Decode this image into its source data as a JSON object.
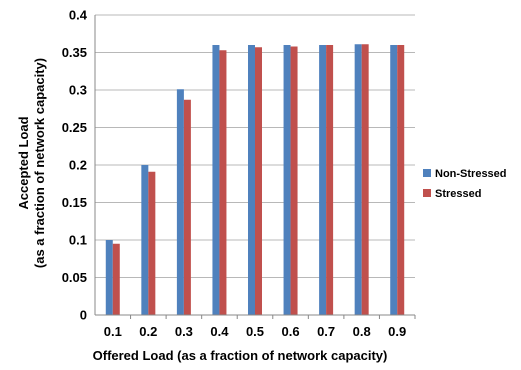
{
  "chart_data": {
    "type": "bar",
    "categories": [
      "0.1",
      "0.2",
      "0.3",
      "0.4",
      "0.5",
      "0.6",
      "0.7",
      "0.8",
      "0.9"
    ],
    "series": [
      {
        "name": "Non-Stressed",
        "color": "#4f81bd",
        "values": [
          0.1,
          0.2,
          0.301,
          0.36,
          0.36,
          0.36,
          0.36,
          0.361,
          0.36
        ]
      },
      {
        "name": "Stressed",
        "color": "#c0504d",
        "values": [
          0.095,
          0.191,
          0.287,
          0.353,
          0.357,
          0.358,
          0.36,
          0.361,
          0.36
        ]
      }
    ],
    "xlabel": "Offered Load (as a fraction of network capacity)",
    "ylabel_line1": "Accepted Load",
    "ylabel_line2": "(as a fraction of network capacity)",
    "ylim": [
      0,
      0.4
    ],
    "yticks": [
      "0",
      "0.05",
      "0.1",
      "0.15",
      "0.2",
      "0.25",
      "0.3",
      "0.35",
      "0.4"
    ],
    "grid": true,
    "legend_position": "right"
  }
}
